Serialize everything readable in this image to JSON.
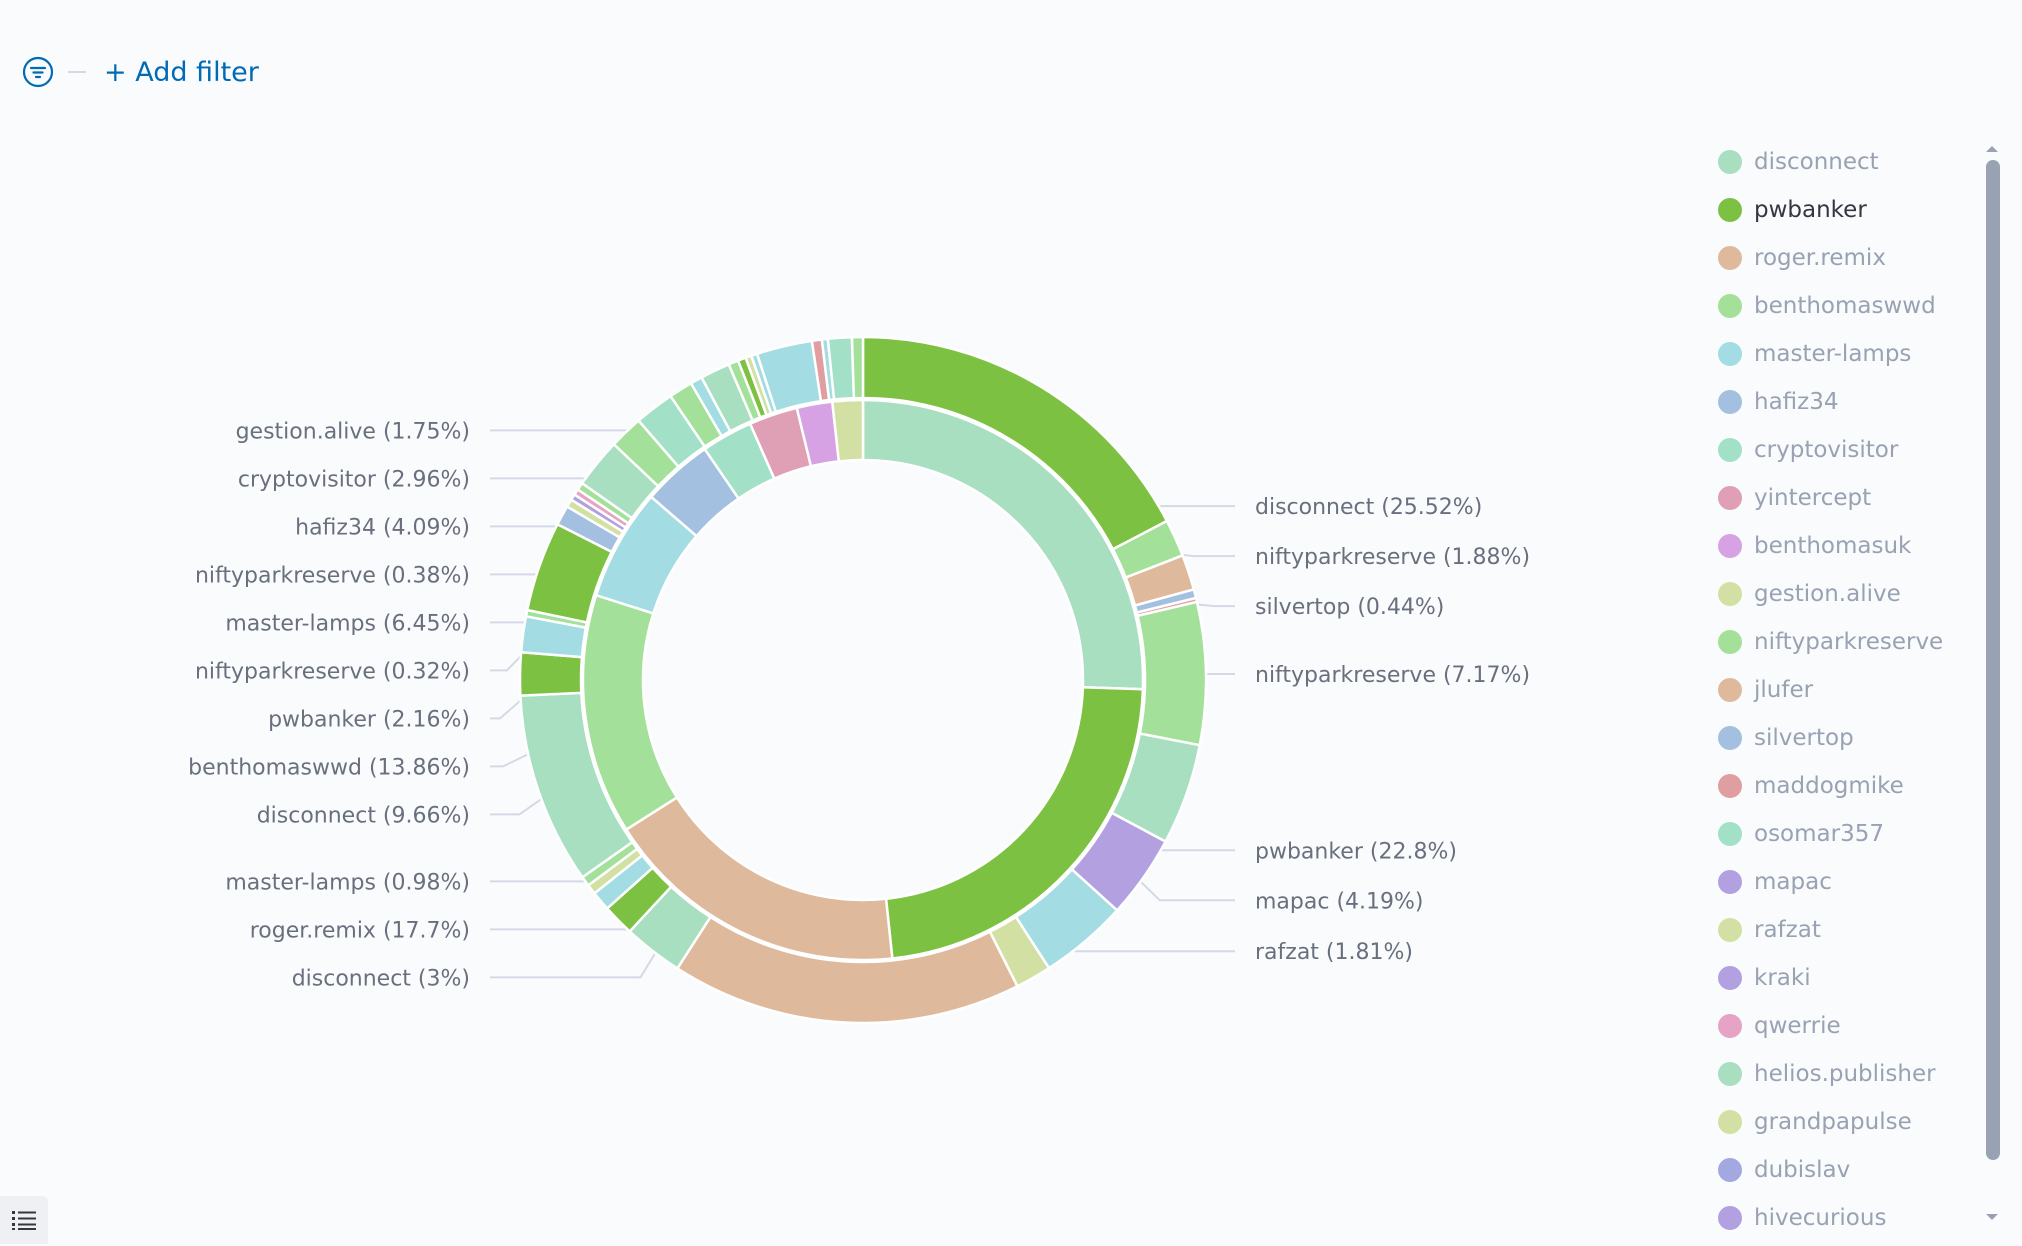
{
  "filter_bar": {
    "add_filter_label": "+ Add filter",
    "filter_icon": "filter-icon",
    "filter_icon_color": "#006bb4"
  },
  "legend_toggle": {
    "icon": "list-icon"
  },
  "chart_data": {
    "type": "pie",
    "variant": "nested-donut",
    "inner_ring": [
      {
        "name": "disconnect",
        "value": 25.52,
        "color": "#a8dfc0"
      },
      {
        "name": "pwbanker",
        "value": 22.8,
        "color": "#7cc142"
      },
      {
        "name": "roger.remix",
        "value": 17.7,
        "color": "#deb99c"
      },
      {
        "name": "benthomaswwd",
        "value": 13.86,
        "color": "#a3e09a"
      },
      {
        "name": "master-lamps",
        "value": 6.45,
        "color": "#a3dce2"
      },
      {
        "name": "hafiz34",
        "value": 4.09,
        "color": "#a3c0e0"
      },
      {
        "name": "cryptovisitor",
        "value": 2.96,
        "color": "#a3e0c8"
      },
      {
        "name": "yintercept",
        "value": 2.8,
        "color": "#df9fb4"
      },
      {
        "name": "benthomasuk",
        "value": 2.05,
        "color": "#d7a2e3"
      },
      {
        "name": "gestion.alive",
        "value": 1.75,
        "color": "#d3e0a3"
      }
    ],
    "outer_ring": [
      {
        "name": "pwbanker",
        "value": 18.55,
        "color": "#7cc142"
      },
      {
        "name": "niftyparkreserve",
        "value": 1.88,
        "color": "#a3e09a"
      },
      {
        "name": "jlufer",
        "value": 1.78,
        "color": "#deb99c"
      },
      {
        "name": "silvertop",
        "value": 0.44,
        "color": "#a3c0e0"
      },
      {
        "name": "maddogmike",
        "value": 0.2,
        "color": "#e09ea0"
      },
      {
        "name": "niftyparkreserve",
        "value": 7.17,
        "color": "#a3e09a"
      },
      {
        "name": "disconnect",
        "value": 5.1,
        "color": "#a8dfc0"
      },
      {
        "name": "mapac",
        "value": 4.19,
        "color": "#b3a0e0"
      },
      {
        "name": "master-lamps",
        "value": 4.45,
        "color": "#a3dce2"
      },
      {
        "name": "rafzat",
        "value": 1.81,
        "color": "#d3e0a3"
      },
      {
        "name": "roger.remix",
        "value": 17.7,
        "color": "#deb99c"
      },
      {
        "name": "disconnect",
        "value": 3,
        "color": "#a8dfc0"
      },
      {
        "name": "pwbanker",
        "value": 1.6,
        "color": "#7cc142"
      },
      {
        "name": "master-lamps",
        "value": 0.98,
        "color": "#a3dce2"
      },
      {
        "name": "gestion.alive",
        "value": 0.5,
        "color": "#d3e0a3"
      },
      {
        "name": "niftyparkreserve",
        "value": 0.5,
        "color": "#a3e09a"
      },
      {
        "name": "disconnect",
        "value": 9.66,
        "color": "#a8dfc0"
      },
      {
        "name": "pwbanker",
        "value": 2.16,
        "color": "#7cc142"
      },
      {
        "name": "master-lamps",
        "value": 1.8,
        "color": "#a3dce2"
      },
      {
        "name": "niftyparkreserve",
        "value": 0.32,
        "color": "#a3e09a"
      },
      {
        "name": "pwbanker",
        "value": 4.53,
        "color": "#7cc142"
      },
      {
        "name": "hafiz34",
        "value": 1.0,
        "color": "#a3c0e0"
      },
      {
        "name": "gestion.alive",
        "value": 0.4,
        "color": "#d3e0a3"
      },
      {
        "name": "mapac",
        "value": 0.3,
        "color": "#b3a0e0"
      },
      {
        "name": "qwerrie",
        "value": 0.3,
        "color": "#e5a3c5"
      },
      {
        "name": "niftyparkreserve",
        "value": 0.38,
        "color": "#a3e09a"
      },
      {
        "name": "disconnect",
        "value": 2.5,
        "color": "#a8dfc0"
      },
      {
        "name": "niftyparkreserve",
        "value": 1.7,
        "color": "#a3e09a"
      },
      {
        "name": "cryptovisitor",
        "value": 2.0,
        "color": "#a3e0c8"
      },
      {
        "name": "niftyparkreserve",
        "value": 1.2,
        "color": "#a3e09a"
      },
      {
        "name": "master-lamps",
        "value": 0.6,
        "color": "#a3dce2"
      },
      {
        "name": "disconnect",
        "value": 1.5,
        "color": "#a8dfc0"
      },
      {
        "name": "niftyparkreserve",
        "value": 0.5,
        "color": "#a3e09a"
      },
      {
        "name": "pwbanker",
        "value": 0.4,
        "color": "#7cc142"
      },
      {
        "name": "rafzat",
        "value": 0.3,
        "color": "#d3e0a3"
      },
      {
        "name": "master-lamps",
        "value": 0.3,
        "color": "#a3dce2"
      },
      {
        "name": "master-lamps",
        "value": 2.8,
        "color": "#a3dce2"
      },
      {
        "name": "maddogmike",
        "value": 0.5,
        "color": "#e09ea0"
      },
      {
        "name": "master-lamps",
        "value": 0.3,
        "color": "#a3dce2"
      },
      {
        "name": "cryptovisitor",
        "value": 1.2,
        "color": "#a3e0c8"
      },
      {
        "name": "niftyparkreserve",
        "value": 0.55,
        "color": "#a3e09a"
      }
    ],
    "labels": [
      {
        "text": "disconnect (25.52%)",
        "side": "right",
        "ring": "inner",
        "index": 0
      },
      {
        "text": "niftyparkreserve (1.88%)",
        "side": "right",
        "ring": "outer",
        "index": 1
      },
      {
        "text": "silvertop (0.44%)",
        "side": "right",
        "ring": "outer",
        "index": 3
      },
      {
        "text": "niftyparkreserve (7.17%)",
        "side": "right",
        "ring": "outer",
        "index": 5
      },
      {
        "text": "pwbanker (22.8%)",
        "side": "right",
        "ring": "inner",
        "index": 1
      },
      {
        "text": "mapac (4.19%)",
        "side": "right",
        "ring": "outer",
        "index": 7
      },
      {
        "text": "rafzat (1.81%)",
        "side": "right",
        "ring": "outer",
        "index": 9
      },
      {
        "text": "roger.remix (17.7%)",
        "side": "left",
        "ring": "inner",
        "index": 2
      },
      {
        "text": "disconnect (3%)",
        "side": "left",
        "ring": "outer",
        "index": 11
      },
      {
        "text": "master-lamps (0.98%)",
        "side": "left",
        "ring": "outer",
        "index": 13
      },
      {
        "text": "disconnect (9.66%)",
        "side": "left",
        "ring": "outer",
        "index": 16
      },
      {
        "text": "benthomaswwd (13.86%)",
        "side": "left",
        "ring": "inner",
        "index": 3
      },
      {
        "text": "pwbanker (2.16%)",
        "side": "left",
        "ring": "outer",
        "index": 17
      },
      {
        "text": "niftyparkreserve (0.32%)",
        "side": "left",
        "ring": "outer",
        "index": 19
      },
      {
        "text": "master-lamps (6.45%)",
        "side": "left",
        "ring": "inner",
        "index": 4
      },
      {
        "text": "niftyparkreserve (0.38%)",
        "side": "left",
        "ring": "outer",
        "index": 25
      },
      {
        "text": "hafiz34 (4.09%)",
        "side": "left",
        "ring": "inner",
        "index": 5
      },
      {
        "text": "cryptovisitor (2.96%)",
        "side": "left",
        "ring": "inner",
        "index": 6
      },
      {
        "text": "gestion.alive (1.75%)",
        "side": "left",
        "ring": "inner",
        "index": 9
      }
    ],
    "legend": [
      {
        "name": "disconnect",
        "color": "#a8dfc0",
        "active": false
      },
      {
        "name": "pwbanker",
        "color": "#7cc142",
        "active": true
      },
      {
        "name": "roger.remix",
        "color": "#deb99c",
        "active": false
      },
      {
        "name": "benthomaswwd",
        "color": "#a3e09a",
        "active": false
      },
      {
        "name": "master-lamps",
        "color": "#a3dce2",
        "active": false
      },
      {
        "name": "hafiz34",
        "color": "#a3c0e0",
        "active": false
      },
      {
        "name": "cryptovisitor",
        "color": "#a3e0c8",
        "active": false
      },
      {
        "name": "yintercept",
        "color": "#df9fb4",
        "active": false
      },
      {
        "name": "benthomasuk",
        "color": "#d7a2e3",
        "active": false
      },
      {
        "name": "gestion.alive",
        "color": "#d3e0a3",
        "active": false
      },
      {
        "name": "niftyparkreserve",
        "color": "#a3e09a",
        "active": false
      },
      {
        "name": "jlufer",
        "color": "#deb99c",
        "active": false
      },
      {
        "name": "silvertop",
        "color": "#a3c0e0",
        "active": false
      },
      {
        "name": "maddogmike",
        "color": "#e09ea0",
        "active": false
      },
      {
        "name": "osomar357",
        "color": "#a3e0c8",
        "active": false
      },
      {
        "name": "mapac",
        "color": "#b3a0e0",
        "active": false
      },
      {
        "name": "rafzat",
        "color": "#d3e0a3",
        "active": false
      },
      {
        "name": "kraki",
        "color": "#b3a0e0",
        "active": false
      },
      {
        "name": "qwerrie",
        "color": "#e5a3c5",
        "active": false
      },
      {
        "name": "helios.publisher",
        "color": "#a8dfc0",
        "active": false
      },
      {
        "name": "grandpapulse",
        "color": "#d3e0a3",
        "active": false
      },
      {
        "name": "dubislav",
        "color": "#a3a8e0",
        "active": false
      },
      {
        "name": "hivecurious",
        "color": "#b3a0e0",
        "active": false
      }
    ]
  }
}
